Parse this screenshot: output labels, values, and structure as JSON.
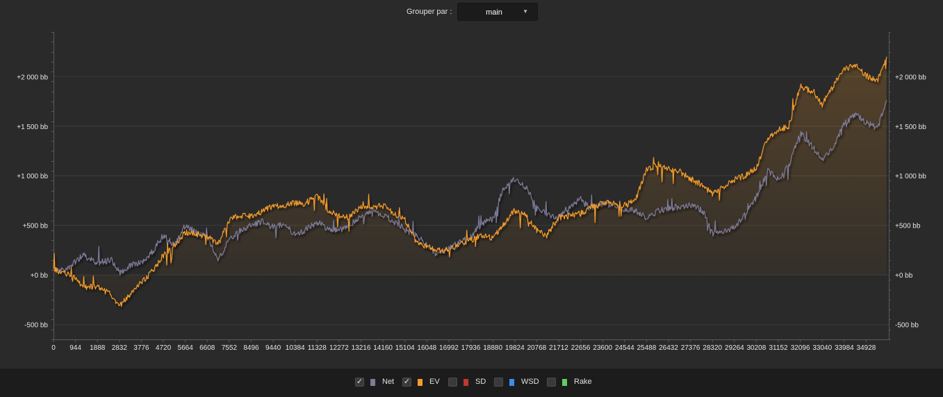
{
  "toolbar": {
    "group_label": "Grouper par :",
    "group_value": "main"
  },
  "colors": {
    "net": "#7f7b98",
    "ev": "#f39c2b",
    "sd": "#c0392b",
    "wsd": "#3b8ee8",
    "rake": "#5fcf5f"
  },
  "legend": [
    {
      "key": "net",
      "label": "Net",
      "checked": true,
      "color": "#7f7b98"
    },
    {
      "key": "ev",
      "label": "EV",
      "checked": true,
      "color": "#f39c2b"
    },
    {
      "key": "sd",
      "label": "SD",
      "checked": false,
      "color": "#c0392b"
    },
    {
      "key": "wsd",
      "label": "WSD",
      "checked": false,
      "color": "#3b8ee8"
    },
    {
      "key": "rake",
      "label": "Rake",
      "checked": false,
      "color": "#5fcf5f"
    }
  ],
  "chart_data": {
    "type": "line",
    "xlabel": "",
    "ylabel": "",
    "xlim": [
      0,
      35900
    ],
    "ylim": [
      -650,
      2450
    ],
    "grid": true,
    "legend_position": "bottom",
    "x_ticks": [
      0,
      944,
      1888,
      2832,
      3776,
      4720,
      5664,
      6608,
      7552,
      8496,
      9440,
      10384,
      11328,
      12272,
      13216,
      14160,
      15104,
      16048,
      16992,
      17936,
      18880,
      19824,
      20768,
      21712,
      22656,
      23600,
      24544,
      25488,
      26432,
      27376,
      28320,
      29264,
      30208,
      31152,
      32096,
      33040,
      33984,
      34928
    ],
    "y_ticks": [
      {
        "value": -500,
        "label": "-500 bb"
      },
      {
        "value": 0,
        "label": "+0 bb"
      },
      {
        "value": 500,
        "label": "+500 bb"
      },
      {
        "value": 1000,
        "label": "+1 000 bb"
      },
      {
        "value": 1500,
        "label": "+1 500 bb"
      },
      {
        "value": 2000,
        "label": "+2 000 bb"
      }
    ],
    "series": [
      {
        "name": "Net",
        "x": [
          0,
          500,
          1000,
          1300,
          1888,
          2500,
          2832,
          3300,
          3776,
          4300,
          4720,
          5200,
          5664,
          6100,
          6608,
          7100,
          7552,
          8000,
          8496,
          9000,
          9440,
          9900,
          10384,
          10800,
          11328,
          11800,
          12272,
          12700,
          13216,
          13700,
          14160,
          14600,
          15104,
          15600,
          16048,
          16500,
          16992,
          17500,
          17936,
          18400,
          18880,
          19300,
          19824,
          20300,
          20768,
          21200,
          21712,
          22200,
          22656,
          23100,
          23600,
          24100,
          24544,
          25000,
          25488,
          26000,
          26432,
          26900,
          27376,
          27900,
          28320,
          28800,
          29264,
          29700,
          30208,
          30700,
          31152,
          31600,
          32096,
          32600,
          33040,
          33500,
          33984,
          34500,
          34928,
          35400,
          35800
        ],
        "y": [
          50,
          40,
          150,
          200,
          120,
          150,
          20,
          100,
          120,
          250,
          400,
          300,
          500,
          430,
          380,
          150,
          350,
          450,
          500,
          540,
          480,
          520,
          400,
          450,
          530,
          470,
          450,
          500,
          590,
          650,
          610,
          540,
          460,
          400,
          300,
          200,
          270,
          330,
          380,
          520,
          570,
          850,
          970,
          880,
          690,
          600,
          580,
          700,
          760,
          660,
          720,
          700,
          660,
          650,
          570,
          650,
          670,
          690,
          700,
          650,
          420,
          440,
          480,
          600,
          780,
          1050,
          970,
          1100,
          1430,
          1300,
          1160,
          1270,
          1530,
          1620,
          1540,
          1470,
          1760
        ]
      },
      {
        "name": "EV",
        "x": [
          0,
          500,
          1000,
          1300,
          1888,
          2500,
          2832,
          3300,
          3776,
          4300,
          4720,
          5200,
          5664,
          6100,
          6608,
          7100,
          7552,
          8000,
          8496,
          9000,
          9440,
          9900,
          10384,
          10800,
          11328,
          11800,
          12272,
          12700,
          13216,
          13700,
          14160,
          14600,
          15104,
          15600,
          16048,
          16500,
          16992,
          17500,
          17936,
          18400,
          18880,
          19300,
          19824,
          20300,
          20768,
          21200,
          21712,
          22200,
          22656,
          23100,
          23600,
          24100,
          24544,
          25000,
          25488,
          26000,
          26432,
          26900,
          27376,
          27900,
          28320,
          28800,
          29264,
          29700,
          30208,
          30700,
          31152,
          31600,
          32096,
          32600,
          33040,
          33500,
          33984,
          34500,
          34928,
          35400,
          35800
        ],
        "y": [
          50,
          20,
          -50,
          -130,
          -120,
          -200,
          -320,
          -200,
          -80,
          50,
          200,
          300,
          430,
          420,
          380,
          320,
          550,
          600,
          590,
          650,
          690,
          700,
          730,
          720,
          800,
          650,
          600,
          580,
          690,
          680,
          700,
          620,
          560,
          330,
          280,
          250,
          250,
          310,
          350,
          400,
          370,
          500,
          650,
          600,
          450,
          400,
          580,
          600,
          620,
          680,
          720,
          730,
          700,
          750,
          1060,
          1120,
          1070,
          1050,
          970,
          900,
          820,
          890,
          960,
          1000,
          1080,
          1380,
          1460,
          1500,
          1900,
          1850,
          1720,
          1900,
          2080,
          2110,
          2010,
          1950,
          2200
        ]
      },
      {
        "name": "SD",
        "x": [],
        "y": []
      },
      {
        "name": "WSD",
        "x": [],
        "y": []
      },
      {
        "name": "Rake",
        "x": [],
        "y": []
      }
    ]
  }
}
